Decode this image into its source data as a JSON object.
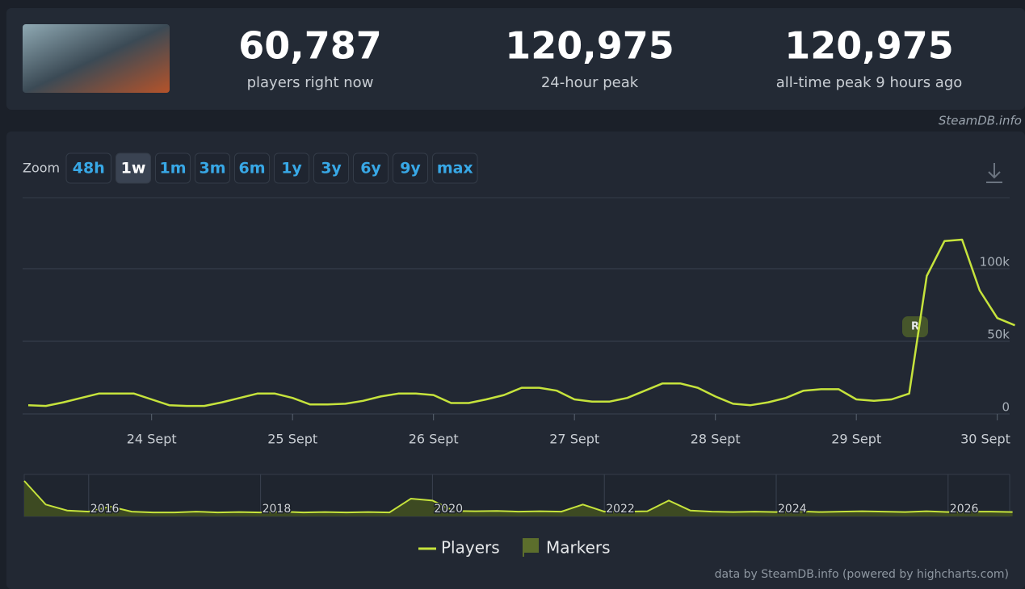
{
  "header": {
    "stats": [
      {
        "value": "60,787",
        "label": "players right now"
      },
      {
        "value": "120,975",
        "label": "24-hour peak"
      },
      {
        "value": "120,975",
        "label": "all-time peak 9 hours ago"
      }
    ],
    "source": "SteamDB.info"
  },
  "zoom": {
    "label": "Zoom",
    "buttons": [
      "48h",
      "1w",
      "1m",
      "3m",
      "6m",
      "1y",
      "3y",
      "6y",
      "9y",
      "max"
    ],
    "active": 1
  },
  "chart_data": {
    "type": "line",
    "categories": [
      null,
      null,
      null,
      null,
      null,
      null,
      null,
      "24 Sept",
      null,
      null,
      null,
      null,
      null,
      null,
      null,
      "25 Sept",
      null,
      null,
      null,
      null,
      null,
      null,
      null,
      "26 Sept",
      null,
      null,
      null,
      null,
      null,
      null,
      null,
      "27 Sept",
      null,
      null,
      null,
      null,
      null,
      null,
      null,
      "28 Sept",
      null,
      null,
      null,
      null,
      null,
      null,
      null,
      "29 Sept",
      null,
      null,
      null,
      null,
      null,
      null,
      null,
      "30 Sept",
      null
    ],
    "series": [
      {
        "name": "Players",
        "color": "#c6e33c",
        "values": [
          6000,
          5500,
          8000,
          11000,
          14000,
          14000,
          14000,
          10000,
          6000,
          5500,
          5500,
          8000,
          11000,
          14000,
          14000,
          11000,
          6500,
          6500,
          7000,
          9000,
          12000,
          14000,
          14000,
          13000,
          7500,
          7500,
          10000,
          13000,
          18000,
          18000,
          16000,
          10000,
          8500,
          8500,
          11000,
          16000,
          21000,
          21000,
          18000,
          12000,
          7000,
          6000,
          8000,
          11000,
          16000,
          17000,
          17000,
          10000,
          9000,
          10000,
          14000,
          95000,
          119000,
          120000,
          85000,
          66000,
          61000
        ]
      }
    ],
    "ylim": [
      0,
      145000
    ],
    "yticks": [
      0,
      {
        "value": 50000,
        "label": "50k"
      },
      {
        "value": 100000,
        "label": "100k"
      }
    ],
    "grid": true,
    "markers": {
      "name": "Markers",
      "color": "#5c6e2c",
      "label": "R"
    }
  },
  "navigator": {
    "categories": [
      null,
      null,
      null,
      "2016",
      null,
      null,
      null,
      null,
      null,
      null,
      null,
      "2018",
      null,
      null,
      null,
      null,
      null,
      null,
      null,
      "2020",
      null,
      null,
      null,
      null,
      null,
      null,
      null,
      "2022",
      null,
      null,
      null,
      null,
      null,
      null,
      null,
      "2024",
      null,
      null,
      null,
      null,
      null,
      null,
      null,
      "2026",
      null,
      null,
      null
    ],
    "values": [
      90000,
      30000,
      15000,
      12000,
      25000,
      12000,
      10000,
      10000,
      12000,
      10000,
      11000,
      10000,
      12000,
      10000,
      11000,
      10000,
      11000,
      10000,
      45000,
      40000,
      14000,
      13000,
      14000,
      12000,
      13000,
      12000,
      30000,
      12000,
      12000,
      13000,
      40000,
      15000,
      12000,
      11000,
      12000,
      11000,
      13000,
      11000,
      12000,
      13000,
      12000,
      11000,
      13000,
      11000,
      12000,
      12000,
      11000
    ]
  },
  "credits": "data by SteamDB.info (powered by highcharts.com)"
}
